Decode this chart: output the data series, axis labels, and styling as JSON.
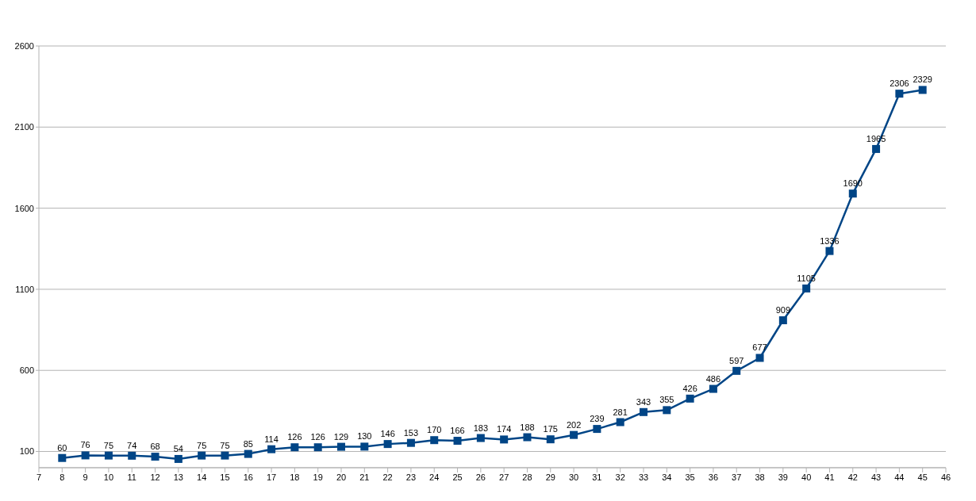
{
  "chart_data": {
    "type": "line",
    "x": [
      8,
      9,
      10,
      11,
      12,
      13,
      14,
      15,
      16,
      17,
      18,
      19,
      20,
      21,
      22,
      23,
      24,
      25,
      26,
      27,
      28,
      29,
      30,
      31,
      32,
      33,
      34,
      35,
      36,
      37,
      38,
      39,
      40,
      41,
      42,
      43,
      44,
      45
    ],
    "series": [
      {
        "color": "#004586",
        "values": [
          60,
          76,
          75,
          74,
          68,
          54,
          75,
          75,
          85,
          114,
          126,
          126,
          129,
          130,
          146,
          153,
          170,
          166,
          183,
          174,
          188,
          175,
          202,
          239,
          281,
          343,
          355,
          426,
          486,
          597,
          677,
          909,
          1105,
          1336,
          1690,
          1965,
          2306,
          2329
        ]
      }
    ],
    "xlim": [
      7,
      46
    ],
    "xticks": [
      7,
      8,
      9,
      10,
      11,
      12,
      13,
      14,
      15,
      16,
      17,
      18,
      19,
      20,
      21,
      22,
      23,
      24,
      25,
      26,
      27,
      28,
      29,
      30,
      31,
      32,
      33,
      34,
      35,
      36,
      37,
      38,
      39,
      40,
      41,
      42,
      43,
      44,
      45,
      46
    ],
    "ylim": [
      0,
      2600
    ],
    "yticks": [
      100,
      600,
      1100,
      1600,
      2100,
      2600
    ],
    "grid": "y",
    "marker": "square",
    "line_style": "solid",
    "data_labels": true,
    "legend": false
  }
}
